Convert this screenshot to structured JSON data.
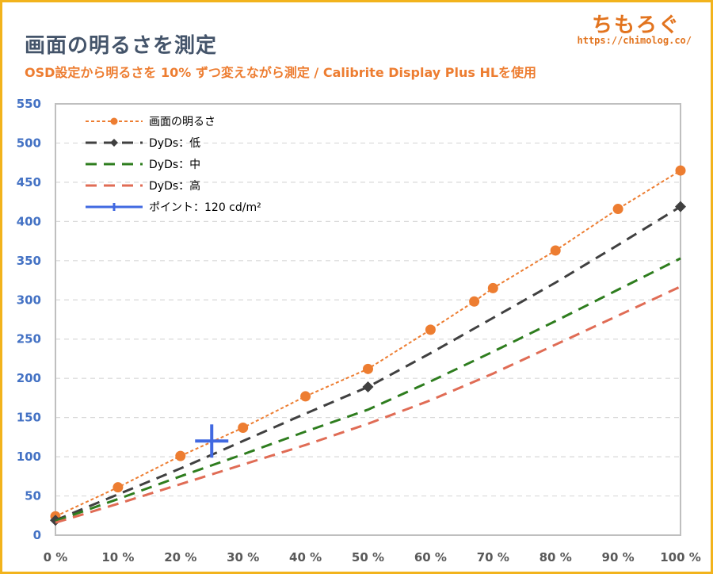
{
  "header": {
    "title": "画面の明るさを測定",
    "subtitle": "OSD設定から明るさを 10% ずつ変えながら測定 / Calibrite Display Plus HLを使用",
    "brand_name": "ちもろぐ",
    "brand_url": "https://chimolog.co/"
  },
  "chart_data": {
    "type": "line",
    "title": "画面の明るさを測定",
    "subtitle": "OSD設定から明るさを 10% ずつ変えながら測定 / Calibrite Display Plus HLを使用",
    "xlim": [
      0,
      100
    ],
    "ylim": [
      0,
      550
    ],
    "x_ticks": [
      0,
      10,
      20,
      30,
      40,
      50,
      60,
      70,
      80,
      90,
      100
    ],
    "x_tick_labels": [
      "0 %",
      "10 %",
      "20 %",
      "30 %",
      "40 %",
      "50 %",
      "60 %",
      "70 %",
      "80 %",
      "90 %",
      "100 %"
    ],
    "y_ticks": [
      0,
      50,
      100,
      150,
      200,
      250,
      300,
      350,
      400,
      450,
      500,
      550
    ],
    "y_tick_labels": [
      "0",
      "50",
      "100",
      "150",
      "200",
      "250",
      "300",
      "350",
      "400",
      "450",
      "500",
      "550"
    ],
    "grid": "horizontal dashed",
    "legend_position": "top-left",
    "series": [
      {
        "name": "画面の明るさ",
        "color": "#ed7d31",
        "style": "dotted",
        "marker": "circle",
        "x": [
          0,
          10,
          20,
          30,
          40,
          50,
          60,
          67,
          70,
          80,
          90,
          100
        ],
        "y": [
          24,
          61,
          101,
          137,
          177,
          212,
          262,
          298,
          315,
          363,
          416,
          465
        ]
      },
      {
        "name": "DyDs：低",
        "color": "#404040",
        "style": "dashed",
        "marker": "diamond",
        "x": [
          0,
          10,
          20,
          30,
          40,
          50,
          60,
          70,
          80,
          90,
          100
        ],
        "y": [
          19,
          52,
          85,
          120,
          155,
          189,
          232,
          277,
          322,
          370,
          419
        ],
        "marker_points": [
          [
            0,
            19
          ],
          [
            50,
            189
          ],
          [
            100,
            419
          ]
        ]
      },
      {
        "name": "DyDs：中",
        "color": "#2e7d1e",
        "style": "dashed",
        "marker": "none",
        "x": [
          0,
          10,
          20,
          30,
          40,
          50,
          60,
          70,
          80,
          90,
          100
        ],
        "y": [
          18,
          46,
          75,
          103,
          132,
          160,
          196,
          234,
          273,
          313,
          353
        ]
      },
      {
        "name": "DyDs：高",
        "color": "#e06c55",
        "style": "dashed",
        "marker": "none",
        "x": [
          0,
          10,
          20,
          30,
          40,
          50,
          60,
          70,
          80,
          90,
          100
        ],
        "y": [
          16,
          40,
          65,
          90,
          115,
          142,
          172,
          206,
          243,
          280,
          317
        ]
      },
      {
        "name": "ポイント：120 cd/m²",
        "color": "#4169e1",
        "style": "crosshair",
        "marker": "plus",
        "x": [
          25
        ],
        "y": [
          120
        ]
      }
    ]
  }
}
